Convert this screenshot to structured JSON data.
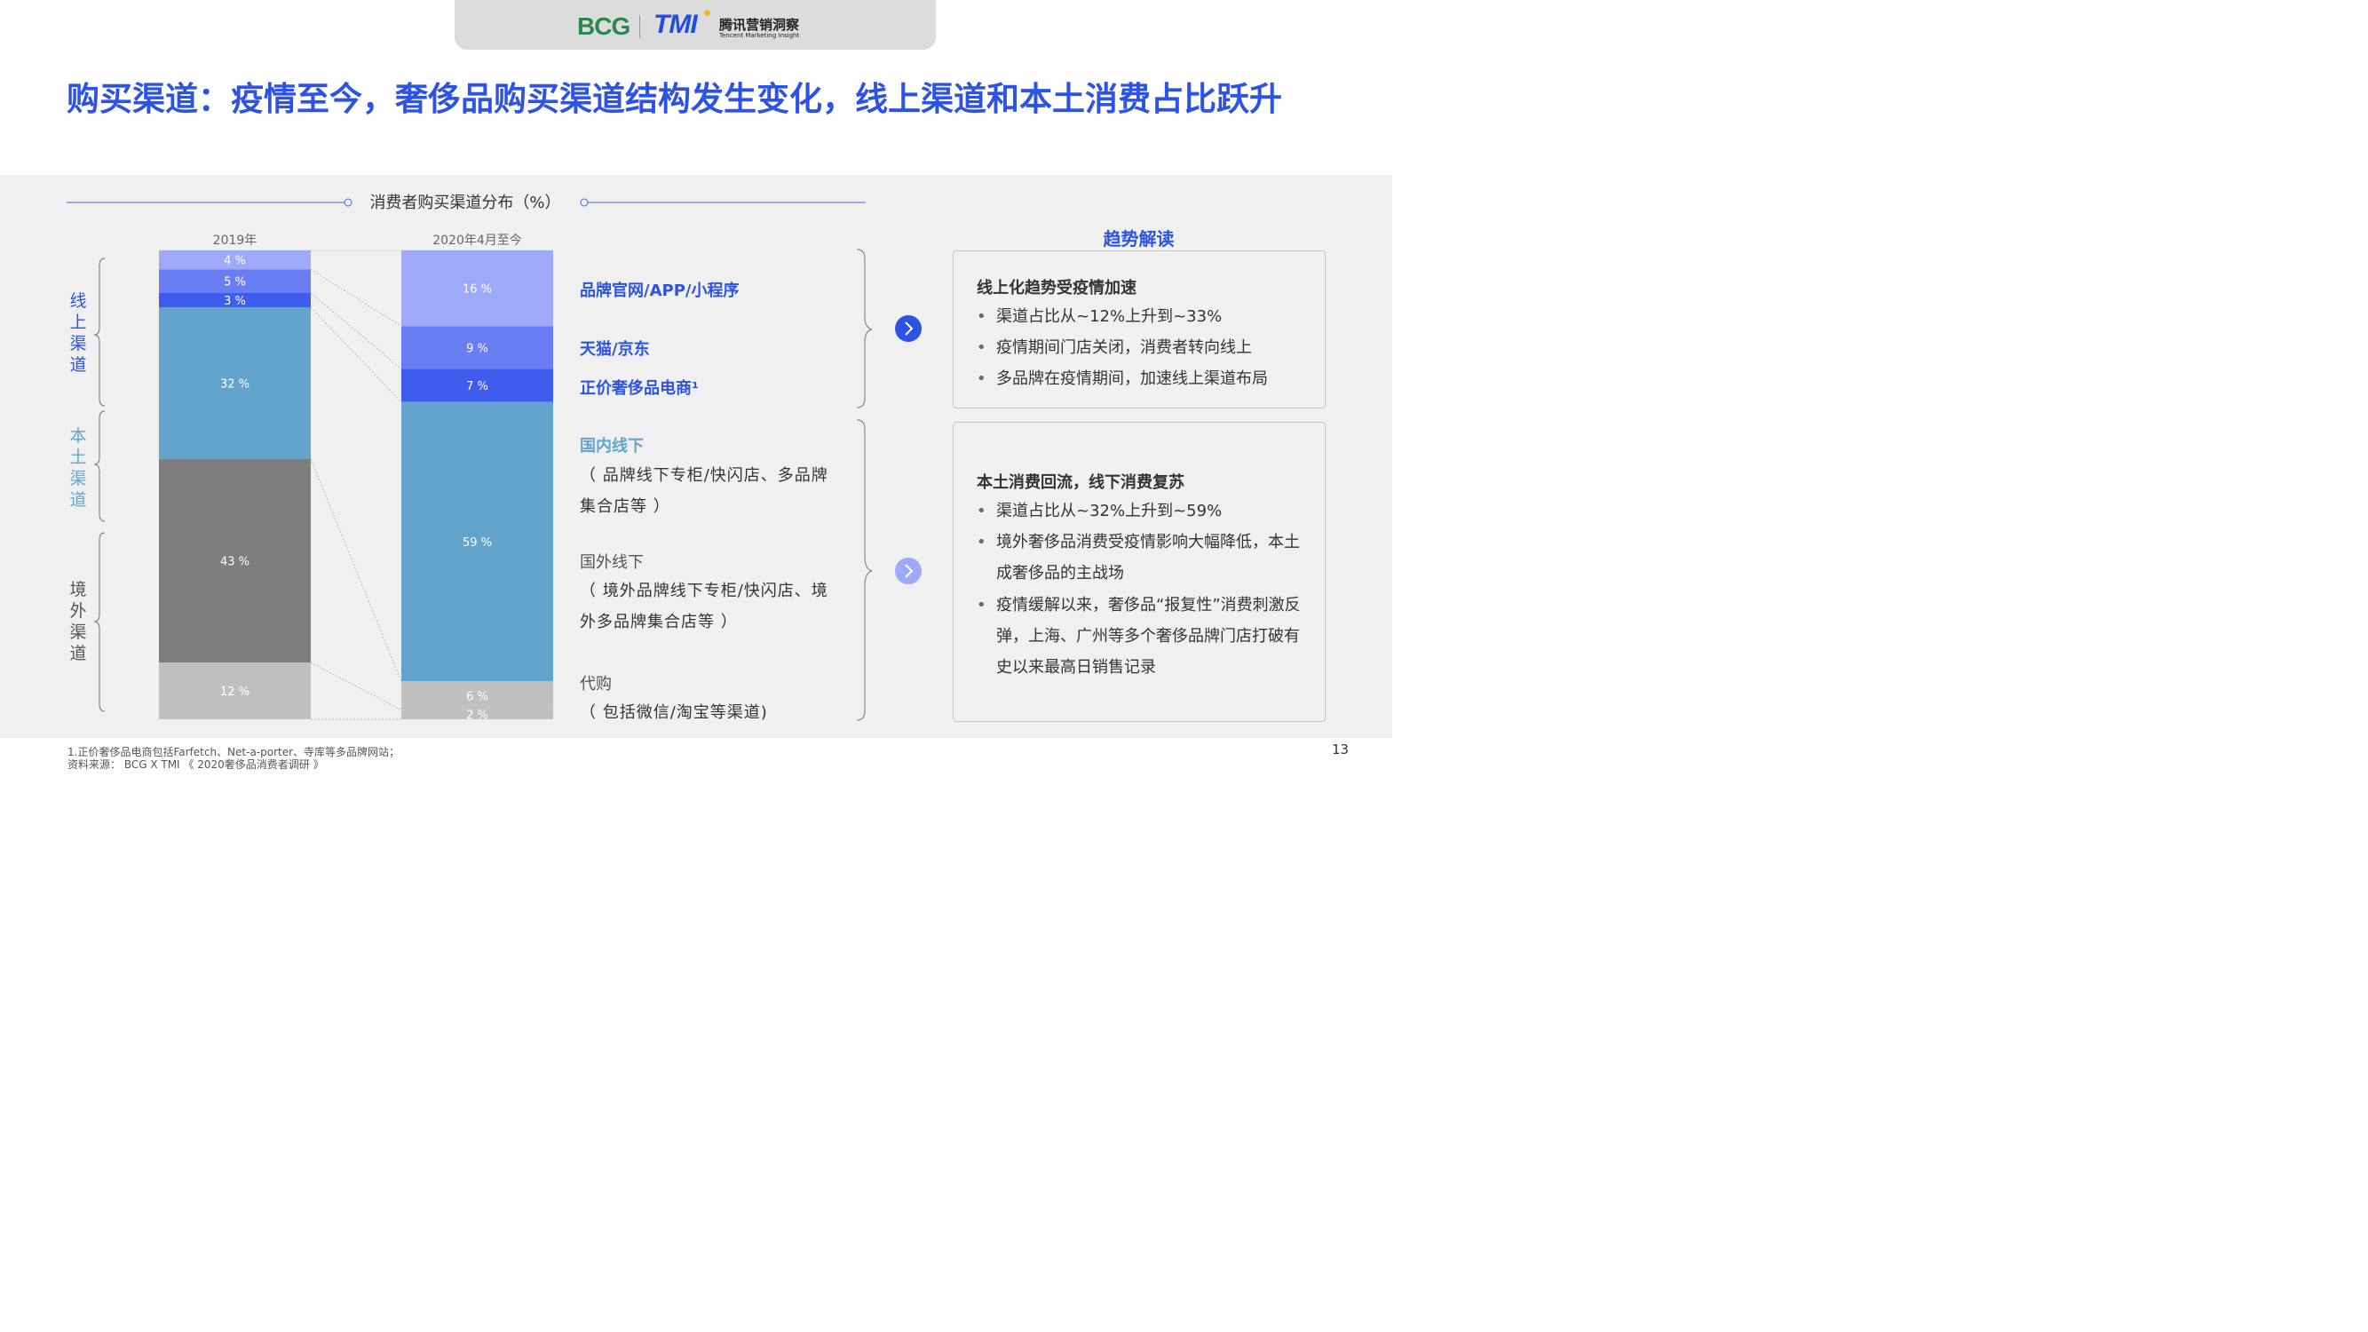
{
  "header": {
    "bcg_logo_text": "BCG",
    "tmi_logo_text": "TMI",
    "tmi_cn_name": "腾讯营销洞察",
    "tmi_en_name": "Tencent Marketing Insight"
  },
  "title": "购买渠道：疫情至今，奢侈品购买渠道结构发生变化，线上渠道和本土消费占比跃升",
  "chart_data": {
    "type": "bar",
    "stacked": true,
    "title": "消费者购买渠道分布（%）",
    "unit": "%",
    "categories": [
      "2019年",
      "2020年4月至今"
    ],
    "series": [
      {
        "name": "品牌官网/APP/小程序",
        "values": [
          4,
          16
        ],
        "color": "#9ea9f8"
      },
      {
        "name": "天猫/京东",
        "values": [
          5,
          9
        ],
        "color": "#6a7ef3"
      },
      {
        "name": "正价奢侈品电商",
        "values": [
          3,
          7
        ],
        "color": "#3f5cef"
      },
      {
        "name": "国内线下",
        "values": [
          32,
          59
        ],
        "color": "#63a4cd"
      },
      {
        "name": "国外线下",
        "values": [
          43,
          0
        ],
        "color": "#7e7e7e"
      },
      {
        "name": "代购",
        "values": [
          12,
          6
        ],
        "color": "#c0c0c0"
      }
    ],
    "extra_segment_2020": {
      "value": 2,
      "label": "2 %",
      "color": "#c0c0c0"
    },
    "value_labels": {
      "2019年": [
        "4 %",
        "5 %",
        "3 %",
        "32 %",
        "43 %",
        "12 %"
      ],
      "2020年4月至今": [
        "16 %",
        "9 %",
        "7 %",
        "59 %",
        "6 %",
        "2 %"
      ]
    },
    "groups": [
      {
        "name": "线上渠道",
        "color": "#2c52e6"
      },
      {
        "name": "本土渠道",
        "color": "#63a4cd"
      },
      {
        "name": "境外渠道",
        "color": "#555555"
      }
    ],
    "legend": {
      "online_brand": "品牌官网/APP/小程序",
      "online_tmall": "天猫/京东",
      "online_ecom": "正价奢侈品电商¹",
      "domestic": "国内线下",
      "domestic_sub": "（ 品牌线下专柜/快闪店、多品牌集合店等 ）",
      "overseas": "国外线下",
      "overseas_sub": "（ 境外品牌线下专柜/快闪店、境外多品牌集合店等 ）",
      "daigou": "代购",
      "daigou_sub": "（ 包括微信/淘宝等渠道)"
    }
  },
  "insights": {
    "title": "趋势解读",
    "box1": {
      "heading": "线上化趋势受疫情加速",
      "items": [
        "渠道占比从~12%上升到~33%",
        "疫情期间门店关闭，消费者转向线上",
        "多品牌在疫情期间，加速线上渠道布局"
      ]
    },
    "box2": {
      "heading": "本土消费回流，线下消费复苏",
      "items": [
        "渠道占比从~32%上升到~59%",
        "境外奢侈品消费受疫情影响大幅降低，本土成奢侈品的主战场",
        "疫情缓解以来，奢侈品“报复性”消费刺激反弹，上海、广州等多个奢侈品牌门店打破有史以来最高日销售记录"
      ]
    },
    "arrow_colors": [
      "#2c52e6",
      "#9ea9f8"
    ]
  },
  "footer": {
    "footnote1": "1.正价奢侈品电商包括Farfetch、Net-a-porter、寺库等多品牌网站；",
    "footnote2": "资料来源： BCG X TMI 《 2020奢侈品消费者调研 》",
    "page_number": "13"
  }
}
